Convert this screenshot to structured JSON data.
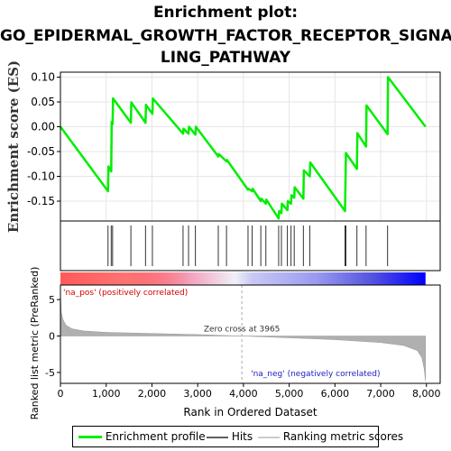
{
  "chart_data": {
    "title_line1": "Enrichment plot:",
    "title_line2": "GO_EPIDERMAL_GROWTH_FACTOR_RECEPTOR_SIGNA",
    "title_line3": "LING_PATHWAY",
    "type": "line",
    "top_panel": {
      "ylabel": "Enrichment score (ES)",
      "ylim": [
        -0.19,
        0.11
      ],
      "yticks": [
        0.1,
        0.05,
        0.0,
        -0.05,
        -0.1,
        -0.15
      ],
      "ytick_labels": [
        "0.10",
        "0.05",
        "0.00",
        "-0.05",
        "-0.10",
        "-0.15"
      ],
      "grid": true,
      "series": [
        {
          "name": "Enrichment profile",
          "color": "#00ee00",
          "x": [
            0,
            1040,
            1050,
            1110,
            1120,
            1140,
            1150,
            1540,
            1550,
            1860,
            1870,
            2010,
            2020,
            2680,
            2690,
            2800,
            2810,
            2950,
            2960,
            3450,
            3460,
            3630,
            3640,
            4100,
            4110,
            4190,
            4200,
            4380,
            4390,
            4490,
            4500,
            4770,
            4780,
            4830,
            4840,
            4960,
            4970,
            5040,
            5050,
            5110,
            5120,
            5310,
            5320,
            5450,
            5460,
            6220,
            6230,
            6240,
            6480,
            6490,
            6680,
            6690,
            7150,
            7160,
            7980
          ],
          "y": [
            0.0,
            -0.13,
            -0.08,
            -0.09,
            0.01,
            0.005,
            0.057,
            0.008,
            0.049,
            0.008,
            0.044,
            0.026,
            0.057,
            -0.014,
            -0.004,
            -0.014,
            0.0,
            -0.016,
            0.0,
            -0.06,
            -0.055,
            -0.07,
            -0.067,
            -0.127,
            -0.125,
            -0.13,
            -0.125,
            -0.15,
            -0.145,
            -0.155,
            -0.147,
            -0.185,
            -0.17,
            -0.174,
            -0.155,
            -0.168,
            -0.15,
            -0.155,
            -0.138,
            -0.143,
            -0.122,
            -0.145,
            -0.088,
            -0.1,
            -0.072,
            -0.17,
            -0.112,
            -0.053,
            -0.085,
            -0.013,
            -0.04,
            0.043,
            -0.015,
            0.1,
            0.0
          ]
        }
      ]
    },
    "hits": {
      "label": "Hits",
      "positions": [
        1040,
        1110,
        1140,
        1540,
        1860,
        2010,
        2680,
        2800,
        2950,
        3450,
        3630,
        4100,
        4190,
        4380,
        4490,
        4770,
        4830,
        4960,
        5040,
        5110,
        5310,
        5450,
        6220,
        6240,
        6480,
        6680,
        7150
      ]
    },
    "colorbar": {
      "pos_label": "'na_pos' (positively correlated)",
      "neg_label": "'na_neg' (negatively correlated)",
      "pos_color": "#ff0000",
      "neg_color": "#0000ff"
    },
    "bottom_panel": {
      "ylabel": "Ranked list metric (PreRanked)",
      "xlabel": "Rank in Ordered Dataset",
      "ylim": [
        -6.5,
        7.0
      ],
      "yticks": [
        5,
        0,
        -5
      ],
      "ytick_labels": [
        "5",
        "0",
        "-5"
      ],
      "xlim": [
        0,
        8300
      ],
      "xticks": [
        0,
        1000,
        2000,
        3000,
        4000,
        5000,
        6000,
        7000,
        8000
      ],
      "xtick_labels": [
        "0",
        "1,000",
        "2,000",
        "3,000",
        "4,000",
        "5,000",
        "6,000",
        "7,000",
        "8,000"
      ],
      "zero_cross_label": "Zero cross at 3965",
      "zero_cross": 3965,
      "metric_x": [
        0,
        20,
        60,
        120,
        250,
        500,
        1000,
        2000,
        3000,
        3965,
        5000,
        6000,
        7000,
        7500,
        7800,
        7900,
        7950,
        7980
      ],
      "metric_y": [
        6.2,
        3.2,
        2.2,
        1.5,
        1.0,
        0.7,
        0.5,
        0.35,
        0.2,
        0.0,
        -0.25,
        -0.5,
        -0.9,
        -1.3,
        -2.0,
        -3.0,
        -4.5,
        -6.2
      ],
      "series_name": "Ranking metric scores",
      "fill_color": "#b0b0b0"
    },
    "legend": {
      "items": [
        {
          "label": "Enrichment profile",
          "color": "#00ee00"
        },
        {
          "label": "Hits",
          "color": "#606060"
        },
        {
          "label": "Ranking metric scores",
          "color": "#cccccc"
        }
      ]
    }
  }
}
